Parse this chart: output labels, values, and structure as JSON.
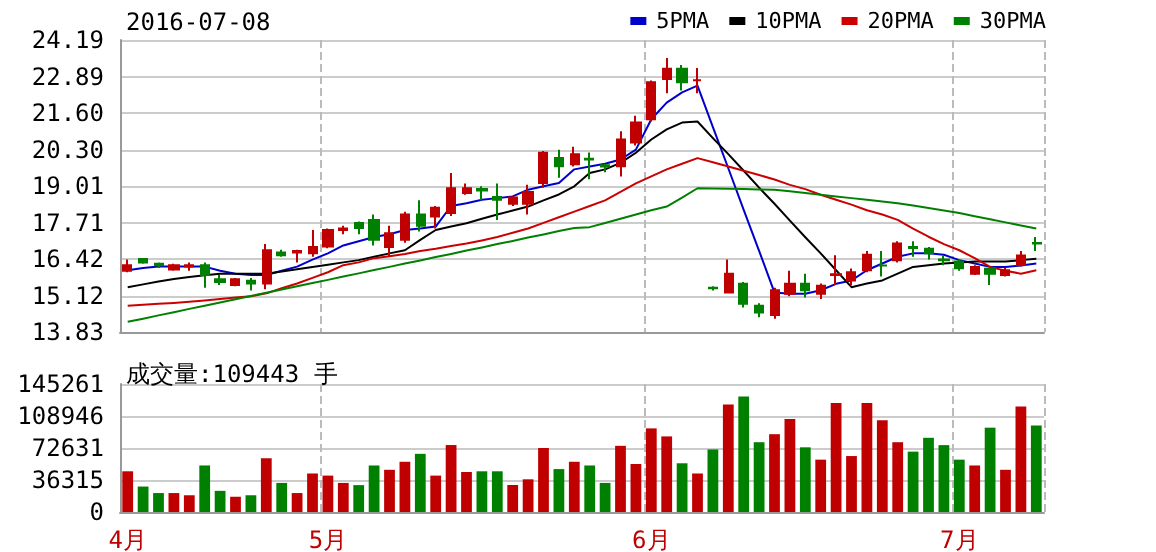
{
  "chart_data": [
    {
      "type": "candlestick",
      "title": "2016-07-08",
      "categories": [
        null,
        null,
        null,
        null,
        null,
        null,
        null,
        null,
        null,
        null,
        null,
        null,
        null,
        null,
        null,
        null,
        null,
        null,
        null,
        null,
        null,
        null,
        null,
        null,
        null,
        null,
        null,
        null,
        null,
        null,
        null,
        null,
        null,
        null,
        null,
        null,
        null,
        null,
        null,
        null,
        null,
        null,
        null,
        null,
        null,
        null,
        null,
        null,
        null,
        null,
        null,
        null,
        null,
        null,
        null,
        null,
        null,
        null,
        null,
        null
      ],
      "ohlc": [
        [
          16.0,
          16.4,
          15.95,
          16.2
        ],
        [
          16.42,
          16.45,
          16.25,
          16.3
        ],
        [
          16.25,
          16.3,
          16.1,
          16.2
        ],
        [
          16.05,
          16.25,
          16.0,
          16.2
        ],
        [
          16.15,
          16.3,
          16.0,
          16.2
        ],
        [
          16.2,
          16.3,
          15.4,
          15.85
        ],
        [
          15.7,
          15.85,
          15.5,
          15.6
        ],
        [
          15.5,
          15.75,
          15.45,
          15.7
        ],
        [
          15.65,
          15.75,
          15.3,
          15.55
        ],
        [
          15.55,
          16.95,
          15.35,
          16.73
        ],
        [
          16.65,
          16.75,
          16.5,
          16.55
        ],
        [
          16.65,
          16.75,
          16.3,
          16.7
        ],
        [
          16.62,
          17.45,
          16.5,
          16.85
        ],
        [
          16.86,
          17.5,
          16.8,
          17.45
        ],
        [
          17.45,
          17.6,
          17.3,
          17.5
        ],
        [
          17.7,
          17.75,
          17.3,
          17.52
        ],
        [
          17.8,
          18.0,
          16.9,
          17.1
        ],
        [
          16.85,
          17.6,
          16.5,
          17.33
        ],
        [
          17.1,
          18.1,
          17.0,
          18.0
        ],
        [
          18.0,
          18.5,
          17.4,
          17.6
        ],
        [
          17.93,
          18.3,
          17.5,
          18.24
        ],
        [
          18.05,
          19.47,
          17.95,
          18.93
        ],
        [
          18.76,
          19.1,
          18.7,
          18.93
        ],
        [
          18.9,
          19.0,
          18.5,
          18.85
        ],
        [
          18.62,
          19.1,
          17.8,
          18.52
        ],
        [
          18.38,
          18.65,
          18.3,
          18.6
        ],
        [
          18.38,
          19.05,
          18.0,
          18.8
        ],
        [
          19.12,
          20.25,
          18.95,
          20.19
        ],
        [
          20.0,
          20.3,
          19.3,
          19.71
        ],
        [
          19.78,
          20.4,
          19.7,
          20.14
        ],
        [
          19.98,
          20.2,
          19.25,
          19.95
        ],
        [
          19.75,
          19.8,
          19.5,
          19.7
        ],
        [
          19.71,
          20.95,
          19.35,
          20.66
        ],
        [
          20.55,
          21.5,
          20.45,
          21.26
        ],
        [
          21.38,
          22.75,
          21.3,
          22.69
        ],
        [
          22.81,
          23.55,
          22.3,
          23.17
        ],
        [
          23.17,
          23.3,
          22.4,
          22.69
        ],
        [
          22.76,
          23.2,
          22.3,
          22.76
        ],
        [
          15.4,
          15.45,
          15.3,
          15.38
        ],
        [
          15.23,
          16.4,
          15.2,
          15.9
        ],
        [
          15.54,
          15.6,
          14.7,
          14.83
        ],
        [
          14.76,
          14.85,
          14.35,
          14.52
        ],
        [
          14.43,
          15.4,
          14.3,
          15.31
        ],
        [
          15.19,
          16.0,
          15.1,
          15.54
        ],
        [
          15.54,
          15.9,
          15.05,
          15.31
        ],
        [
          15.19,
          15.55,
          15.0,
          15.47
        ],
        [
          15.85,
          16.55,
          15.5,
          15.88
        ],
        [
          15.66,
          16.08,
          15.48,
          15.95
        ],
        [
          16.02,
          16.7,
          15.95,
          16.57
        ],
        [
          16.19,
          16.7,
          15.8,
          16.19
        ],
        [
          16.38,
          17.05,
          16.3,
          16.97
        ],
        [
          16.85,
          17.05,
          16.5,
          16.81
        ],
        [
          16.78,
          16.85,
          16.4,
          16.62
        ],
        [
          16.4,
          16.55,
          16.2,
          16.38
        ],
        [
          16.33,
          16.4,
          16.0,
          16.09
        ],
        [
          15.9,
          16.2,
          15.85,
          16.14
        ],
        [
          16.07,
          16.1,
          15.5,
          15.9
        ],
        [
          15.85,
          16.1,
          15.8,
          16.02
        ],
        [
          16.21,
          16.7,
          16.15,
          16.54
        ],
        [
          16.99,
          17.2,
          16.7,
          16.97
        ]
      ],
      "series": [
        {
          "type": "line",
          "name": "5PMA",
          "color": "#0000cc",
          "values": [
            16.02,
            16.1,
            16.15,
            16.15,
            16.15,
            16.15,
            16.0,
            15.9,
            15.85,
            15.85,
            16.0,
            16.15,
            16.4,
            16.62,
            16.9,
            17.05,
            17.2,
            17.3,
            17.45,
            17.5,
            17.57,
            18.3,
            18.4,
            18.52,
            18.58,
            18.64,
            18.88,
            19.0,
            19.12,
            19.6,
            19.7,
            19.8,
            19.95,
            20.3,
            21.38,
            21.97,
            22.33,
            22.57,
            21.1,
            19.64,
            18.16,
            16.71,
            15.23,
            15.19,
            15.19,
            15.31,
            15.54,
            15.66,
            16.02,
            16.26,
            16.5,
            16.62,
            16.62,
            16.57,
            16.38,
            16.26,
            16.14,
            16.14,
            16.19,
            16.26
          ]
        },
        {
          "type": "line",
          "name": "10PMA",
          "color": "#000000",
          "values": [
            15.42,
            15.52,
            15.62,
            15.71,
            15.78,
            15.84,
            15.9,
            15.9,
            15.9,
            15.9,
            15.98,
            16.06,
            16.14,
            16.22,
            16.3,
            16.38,
            16.5,
            16.62,
            16.73,
            17.1,
            17.45,
            17.57,
            17.69,
            17.85,
            18.0,
            18.14,
            18.28,
            18.5,
            18.71,
            19.0,
            19.47,
            19.6,
            19.83,
            20.19,
            20.66,
            21.02,
            21.26,
            21.3,
            20.71,
            20.14,
            19.55,
            18.95,
            18.38,
            17.78,
            17.19,
            16.62,
            16.02,
            15.42,
            15.55,
            15.66,
            15.9,
            16.14,
            16.2,
            16.26,
            16.3,
            16.33,
            16.33,
            16.33,
            16.38,
            16.43
          ]
        },
        {
          "type": "line",
          "name": "20PMA",
          "color": "#cc0000",
          "values": [
            14.76,
            14.8,
            14.83,
            14.86,
            14.9,
            14.95,
            15.0,
            15.05,
            15.1,
            15.2,
            15.38,
            15.55,
            15.75,
            15.95,
            16.2,
            16.3,
            16.45,
            16.52,
            16.6,
            16.7,
            16.78,
            16.88,
            16.97,
            17.08,
            17.2,
            17.35,
            17.5,
            17.7,
            17.9,
            18.1,
            18.3,
            18.5,
            18.8,
            19.1,
            19.35,
            19.6,
            19.8,
            20.0,
            19.85,
            19.7,
            19.55,
            19.4,
            19.24,
            19.05,
            18.9,
            18.7,
            18.52,
            18.35,
            18.15,
            18.0,
            17.81,
            17.5,
            17.21,
            16.95,
            16.73,
            16.45,
            16.14,
            16.0,
            15.9,
            16.02
          ]
        },
        {
          "type": "line",
          "name": "30PMA",
          "color": "#008000",
          "values": [
            14.19,
            14.3,
            14.42,
            14.53,
            14.65,
            14.76,
            14.88,
            14.99,
            15.11,
            15.22,
            15.34,
            15.45,
            15.57,
            15.68,
            15.8,
            15.91,
            16.03,
            16.14,
            16.26,
            16.37,
            16.49,
            16.6,
            16.72,
            16.83,
            16.95,
            17.06,
            17.18,
            17.29,
            17.41,
            17.52,
            17.55,
            17.7,
            17.85,
            18.0,
            18.15,
            18.28,
            18.6,
            18.93,
            18.92,
            18.91,
            18.9,
            18.89,
            18.88,
            18.82,
            18.76,
            18.7,
            18.64,
            18.58,
            18.52,
            18.46,
            18.4,
            18.32,
            18.23,
            18.14,
            18.05,
            17.94,
            17.83,
            17.72,
            17.61,
            17.5
          ]
        }
      ],
      "ylim": [
        13.83,
        24.19
      ],
      "yticks": [
        13.83,
        15.12,
        16.42,
        17.71,
        19.01,
        {
          "value": 20.3,
          "label": "20.30"
        },
        {
          "value": 21.6,
          "label": "21.60"
        },
        22.89,
        24.19
      ],
      "grid": true,
      "legend": "top right",
      "tick_labels": "y"
    },
    {
      "type": "bar",
      "title": "成交量:109443 手",
      "categories": [
        "4月",
        null,
        null,
        null,
        null,
        null,
        null,
        null,
        null,
        null,
        null,
        null,
        null,
        "5月",
        null,
        null,
        null,
        null,
        null,
        null,
        null,
        null,
        null,
        null,
        null,
        null,
        null,
        null,
        null,
        null,
        null,
        null,
        null,
        null,
        "6月",
        null,
        null,
        null,
        null,
        null,
        null,
        null,
        null,
        null,
        null,
        null,
        null,
        null,
        null,
        null,
        null,
        null,
        null,
        null,
        "7月",
        null,
        null,
        null,
        null,
        null
      ],
      "values": [
        46200,
        28900,
        21500,
        21500,
        19000,
        52800,
        24000,
        17300,
        19000,
        61000,
        33000,
        21500,
        43700,
        41300,
        33000,
        30500,
        52800,
        47900,
        57000,
        66000,
        41300,
        76000,
        45400,
        46200,
        46200,
        30500,
        37100,
        72600,
        48700,
        57000,
        52800,
        33000,
        75100,
        54500,
        94900,
        85800,
        55300,
        43700,
        71000,
        122100,
        131200,
        79200,
        88300,
        105600,
        73400,
        59400,
        123800,
        63500,
        123800,
        104000,
        79200,
        68500,
        84200,
        75900,
        59400,
        52800,
        95700,
        47900,
        119600,
        98200
      ],
      "colors": [
        "#c00000",
        "#008000",
        "#008000",
        "#c00000",
        "#c00000",
        "#008000",
        "#008000",
        "#c00000",
        "#008000",
        "#c00000",
        "#008000",
        "#c00000",
        "#c00000",
        "#c00000",
        "#c00000",
        "#008000",
        "#008000",
        "#c00000",
        "#c00000",
        "#008000",
        "#c00000",
        "#c00000",
        "#c00000",
        "#008000",
        "#008000",
        "#c00000",
        "#c00000",
        "#c00000",
        "#008000",
        "#c00000",
        "#008000",
        "#008000",
        "#c00000",
        "#c00000",
        "#c00000",
        "#c00000",
        "#008000",
        "#c00000",
        "#008000",
        "#c00000",
        "#008000",
        "#008000",
        "#c00000",
        "#c00000",
        "#008000",
        "#c00000",
        "#c00000",
        "#c00000",
        "#c00000",
        "#c00000",
        "#c00000",
        "#008000",
        "#008000",
        "#008000",
        "#008000",
        "#c00000",
        "#008000",
        "#c00000",
        "#c00000",
        "#008000"
      ],
      "ylim": [
        0,
        145261
      ],
      "yticks": [
        0,
        36315,
        72631,
        108946,
        145261
      ],
      "grid": true
    }
  ]
}
